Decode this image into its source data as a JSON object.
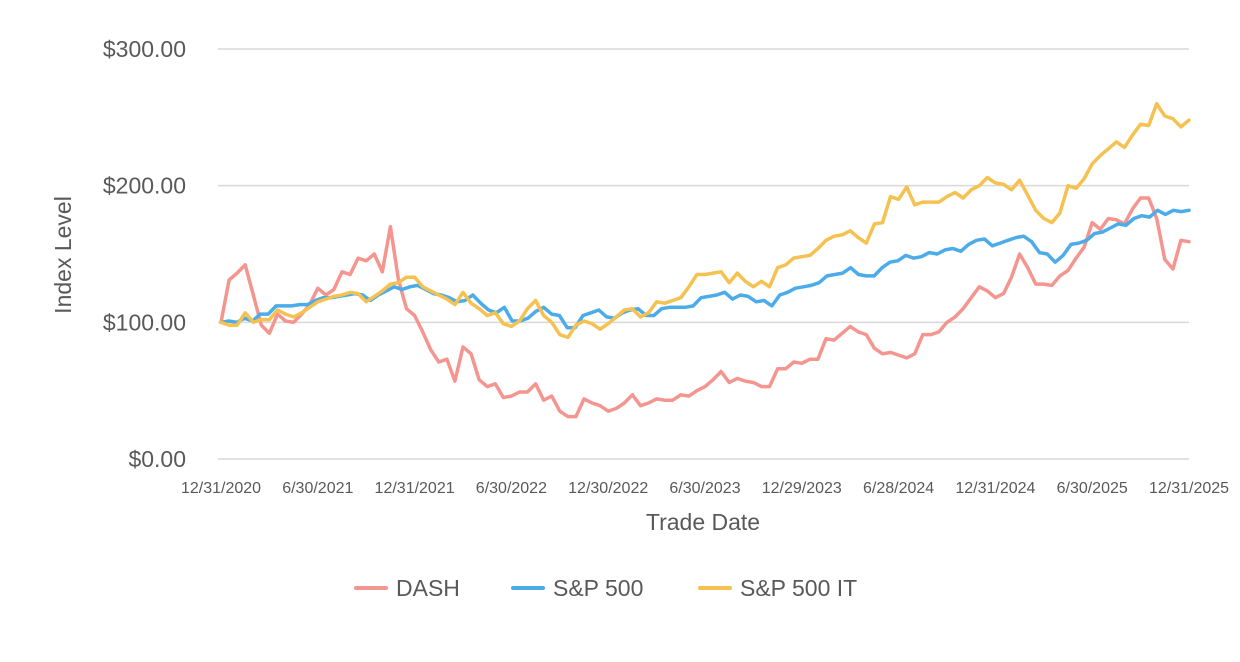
{
  "chart_data": {
    "type": "line",
    "title": "",
    "xlabel": "Trade Date",
    "ylabel": "Index Level",
    "ylim": [
      0,
      300
    ],
    "y_ticks": [
      0,
      100,
      200,
      300
    ],
    "y_tick_labels": [
      "$0.00",
      "$100.00",
      "$200.00",
      "$300.00"
    ],
    "x_tick_labels": [
      "12/31/2020",
      "6/30/2021",
      "12/31/2021",
      "6/30/2022",
      "12/30/2022",
      "6/30/2023",
      "12/29/2023",
      "6/28/2024",
      "12/31/2024",
      "6/30/2025",
      "12/31/2025"
    ],
    "grid": true,
    "legend_position": "bottom",
    "series": [
      {
        "name": "DASH",
        "color": "#f4958f",
        "values": [
          100,
          131,
          136,
          142,
          120,
          98,
          92,
          106,
          101,
          100,
          106,
          113,
          125,
          120,
          124,
          137,
          135,
          147,
          145,
          150,
          137,
          170,
          131,
          110,
          105,
          93,
          80,
          71,
          73,
          57,
          82,
          77,
          58,
          53,
          55,
          45,
          46,
          49,
          49,
          55,
          43,
          46,
          35,
          31,
          31,
          44,
          41,
          39,
          35,
          37,
          41,
          47,
          39,
          41,
          44,
          43,
          43,
          47,
          46,
          50,
          53,
          58,
          64,
          56,
          59,
          57,
          56,
          53,
          53,
          66,
          66,
          71,
          70,
          73,
          73,
          88,
          87,
          92,
          97,
          93,
          91,
          81,
          77,
          78,
          76,
          74,
          77,
          91,
          91,
          93,
          100,
          104,
          110,
          118,
          126,
          123,
          118,
          121,
          133,
          150,
          140,
          128,
          128,
          127,
          134,
          138,
          147,
          155,
          173,
          168,
          176,
          175,
          172,
          183,
          191,
          191,
          176,
          146,
          139,
          160,
          159
        ]
      },
      {
        "name": "S&P 500",
        "color": "#4bace9",
        "values": [
          100,
          101,
          100,
          103,
          101,
          106,
          106,
          112,
          112,
          112,
          113,
          113,
          116,
          118,
          118,
          119,
          120,
          121,
          120,
          116,
          120,
          123,
          126,
          124,
          126,
          127,
          124,
          121,
          120,
          118,
          115,
          116,
          120,
          114,
          109,
          107,
          111,
          101,
          101,
          103,
          108,
          111,
          106,
          105,
          96,
          96,
          105,
          107,
          109,
          104,
          103,
          107,
          109,
          110,
          105,
          105,
          110,
          111,
          111,
          111,
          112,
          118,
          119,
          120,
          122,
          117,
          120,
          119,
          115,
          116,
          112,
          120,
          122,
          125,
          126,
          127,
          129,
          134,
          135,
          136,
          140,
          135,
          134,
          134,
          140,
          144,
          145,
          149,
          147,
          148,
          151,
          150,
          153,
          154,
          152,
          157,
          160,
          161,
          156,
          158,
          160,
          162,
          163,
          159,
          151,
          150,
          144,
          149,
          157,
          158,
          160,
          165,
          166,
          169,
          172,
          171,
          176,
          178,
          177,
          182,
          179,
          182,
          181,
          182
        ]
      },
      {
        "name": "S&P 500 IT",
        "color": "#f5c150",
        "values": [
          100,
          98,
          98,
          107,
          100,
          102,
          102,
          109,
          106,
          104,
          107,
          111,
          115,
          117,
          119,
          120,
          122,
          121,
          115,
          119,
          123,
          128,
          129,
          133,
          133,
          126,
          123,
          120,
          117,
          113,
          122,
          114,
          110,
          105,
          107,
          99,
          97,
          101,
          110,
          116,
          105,
          100,
          91,
          89,
          98,
          101,
          99,
          95,
          99,
          104,
          109,
          110,
          104,
          107,
          115,
          114,
          116,
          118,
          126,
          135,
          135,
          136,
          137,
          129,
          136,
          130,
          126,
          130,
          126,
          140,
          142,
          147,
          148,
          149,
          154,
          160,
          163,
          164,
          167,
          162,
          158,
          172,
          173,
          192,
          190,
          199,
          186,
          188,
          188,
          188,
          192,
          195,
          191,
          197,
          200,
          206,
          202,
          201,
          197,
          204,
          193,
          182,
          176,
          173,
          180,
          200,
          198,
          205,
          216,
          222,
          227,
          232,
          228,
          237,
          245,
          244,
          260,
          251,
          249,
          243,
          248
        ]
      }
    ]
  }
}
